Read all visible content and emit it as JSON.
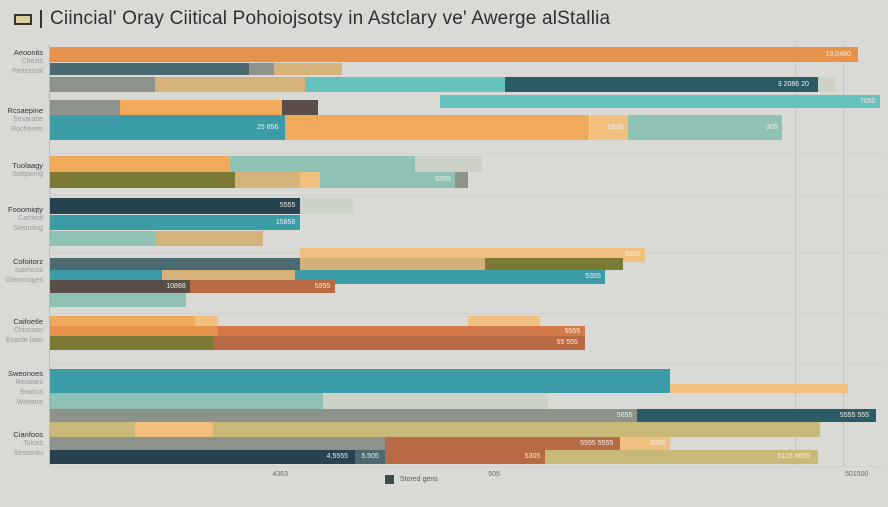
{
  "title": "Ciincial' Oray Ciitical Pohoiojsotsy in Astclary ve' Awerge alStallia",
  "title_icon": "window-icon",
  "chart_data": {
    "type": "bar",
    "orientation": "horizontal",
    "stacked": true,
    "xlim": [
      0,
      100
    ],
    "grid": true,
    "legend": {
      "placement": "bottom-center",
      "entries": [
        "Stored gens"
      ],
      "color": "#3d4a4d"
    },
    "x_ticks": [
      "4363",
      "505",
      "501500"
    ],
    "x_tick_values": [
      28,
      54,
      97
    ],
    "colors": {
      "orange": "#e7924a",
      "lightorange": "#efaa5c",
      "paleorange": "#f2c07e",
      "rust": "#d47a4a",
      "tan": "#d4b27a",
      "teal": "#3b9ba7",
      "lightteal": "#66c2bc",
      "mint": "#8fc2b4",
      "darkteal": "#2b5b66",
      "navy": "#27434f",
      "slate": "#4c6870",
      "gray": "#8d938a",
      "olive": "#7b7a35",
      "brown": "#5a4e48",
      "brownorange": "#b86a45",
      "pale": "#ccd2c6",
      "sand": "#c9b978"
    },
    "groups": [
      {
        "label": "Aeoonits",
        "sub": [
          "Chezis",
          "Pertectsal"
        ]
      },
      {
        "label": "Rcsaepine",
        "sub": [
          "Sexarabe",
          "Rocherets"
        ]
      },
      {
        "label": "Tuolaagy",
        "sub": [
          "Sottpvinig"
        ]
      },
      {
        "label": "Fooomiqty",
        "sub": [
          "Carriedt",
          "Sesturing"
        ]
      },
      {
        "label": "Cofoitorz",
        "sub": [
          "Isaehcns",
          "Glemmages"
        ]
      },
      {
        "label": "Caifoetle",
        "sub": [
          "Chiosasn",
          "Exartle laan"
        ]
      },
      {
        "label": "Sweonoes",
        "sub": [
          "Reciears",
          "Seatins",
          "Weeatre"
        ]
      },
      {
        "label": "Cianfoos",
        "sub": [
          "Tolces",
          "Sessentu"
        ]
      }
    ],
    "rows": [
      {
        "segments": [
          {
            "start": 0,
            "end": 97.3,
            "color": "orange",
            "label": "19,0480"
          }
        ]
      },
      {
        "segments": [
          {
            "start": 0,
            "end": 24,
            "color": "slate"
          },
          {
            "start": 24,
            "end": 27,
            "color": "gray"
          },
          {
            "start": 27,
            "end": 35.2,
            "color": "tan"
          }
        ]
      },
      {
        "segments": [
          {
            "start": 0,
            "end": 12.6,
            "color": "gray"
          },
          {
            "start": 12.6,
            "end": 30.7,
            "color": "tan"
          },
          {
            "start": 30.7,
            "end": 54.8,
            "color": "lightteal"
          },
          {
            "start": 54.8,
            "end": 92.5,
            "color": "darkteal",
            "label": "3 2086 20"
          },
          {
            "start": 92.5,
            "end": 94.6,
            "color": "pale"
          }
        ]
      },
      {
        "segments": [
          {
            "start": 47,
            "end": 100,
            "color": "lightteal",
            "label": "7050"
          }
        ]
      },
      {
        "segments": [
          {
            "start": 0,
            "end": 8.4,
            "color": "gray"
          },
          {
            "start": 8.4,
            "end": 28,
            "color": "lightorange"
          },
          {
            "start": 28,
            "end": 32.3,
            "color": "brown"
          }
        ]
      },
      {
        "segments": [
          {
            "start": 0,
            "end": 28.3,
            "color": "teal",
            "label": "25 856"
          },
          {
            "start": 28.3,
            "end": 65,
            "color": "lightorange"
          },
          {
            "start": 65,
            "end": 69.6,
            "color": "paleorange",
            "label": "5526"
          },
          {
            "start": 69.6,
            "end": 88.2,
            "color": "mint",
            "label": "305"
          }
        ]
      },
      {
        "segments": [
          {
            "start": 0,
            "end": 21.7,
            "color": "lightorange"
          },
          {
            "start": 21.7,
            "end": 44,
            "color": "mint"
          },
          {
            "start": 44,
            "end": 48.8,
            "color": "pale"
          },
          {
            "start": 48.8,
            "end": 52,
            "color": "pale"
          }
        ]
      },
      {
        "segments": [
          {
            "start": 0,
            "end": 22.3,
            "color": "olive"
          },
          {
            "start": 22.3,
            "end": 30.1,
            "color": "tan"
          },
          {
            "start": 30.1,
            "end": 32.5,
            "color": "paleorange"
          },
          {
            "start": 32.5,
            "end": 48.8,
            "color": "mint",
            "label": "5355"
          },
          {
            "start": 48.8,
            "end": 50.4,
            "color": "gray"
          }
        ]
      },
      {
        "segments": [
          {
            "start": 0,
            "end": 30.1,
            "color": "navy",
            "label": "5555"
          },
          {
            "start": 30.1,
            "end": 36.5,
            "color": "pale"
          }
        ]
      },
      {
        "segments": [
          {
            "start": 0,
            "end": 30.1,
            "color": "teal",
            "label": "15858"
          }
        ]
      },
      {
        "segments": [
          {
            "start": 0,
            "end": 12.6,
            "color": "mint"
          },
          {
            "start": 12.6,
            "end": 25.7,
            "color": "tan"
          }
        ]
      },
      {
        "segments": [
          {
            "start": 30.1,
            "end": 71.7,
            "color": "paleorange",
            "label": "5855"
          }
        ]
      },
      {
        "segments": [
          {
            "start": 0,
            "end": 30.1,
            "color": "slate"
          },
          {
            "start": 30.1,
            "end": 52.4,
            "color": "tan"
          },
          {
            "start": 52.4,
            "end": 69,
            "color": "olive"
          }
        ]
      },
      {
        "segments": [
          {
            "start": 0,
            "end": 13.5,
            "color": "teal"
          },
          {
            "start": 13.5,
            "end": 29.5,
            "color": "tan"
          },
          {
            "start": 29.5,
            "end": 66.9,
            "color": "teal",
            "label": "5355"
          }
        ]
      },
      {
        "segments": [
          {
            "start": 0,
            "end": 16.9,
            "color": "brown",
            "label": "10868"
          },
          {
            "start": 16.9,
            "end": 34.3,
            "color": "brownorange",
            "label": "5955"
          }
        ]
      },
      {
        "segments": [
          {
            "start": 0,
            "end": 16.4,
            "color": "mint"
          }
        ]
      },
      {
        "segments": [
          {
            "start": 0,
            "end": 17.5,
            "color": "lightorange"
          },
          {
            "start": 17.5,
            "end": 20.2,
            "color": "paleorange"
          },
          {
            "start": 50.4,
            "end": 59,
            "color": "paleorange"
          }
        ]
      },
      {
        "segments": [
          {
            "start": 0,
            "end": 20.2,
            "color": "orange"
          },
          {
            "start": 20.2,
            "end": 64.4,
            "color": "rust",
            "label": "5555"
          }
        ]
      },
      {
        "segments": [
          {
            "start": 0,
            "end": 19.6,
            "color": "olive"
          },
          {
            "start": 19.6,
            "end": 64.4,
            "color": "brownorange",
            "label": "55 555"
          }
        ]
      },
      {
        "segments": [
          {
            "start": 0,
            "end": 74.7,
            "color": "teal"
          }
        ]
      },
      {
        "segments": [
          {
            "start": 0,
            "end": 74.7,
            "color": "teal"
          },
          {
            "start": 74.7,
            "end": 96.1,
            "color": "paleorange"
          }
        ]
      },
      {
        "segments": [
          {
            "start": 0,
            "end": 32.9,
            "color": "mint"
          },
          {
            "start": 32.9,
            "end": 60,
            "color": "pale"
          }
        ]
      },
      {
        "segments": [
          {
            "start": 0,
            "end": 70.7,
            "color": "gray",
            "label": "5655"
          },
          {
            "start": 70.7,
            "end": 99.5,
            "color": "darkteal",
            "label": "5555 555"
          }
        ]
      },
      {
        "segments": [
          {
            "start": 0,
            "end": 10.2,
            "color": "sand"
          },
          {
            "start": 10.2,
            "end": 19.6,
            "color": "paleorange"
          },
          {
            "start": 19.6,
            "end": 92.8,
            "color": "sand"
          }
        ]
      },
      {
        "segments": [
          {
            "start": 0,
            "end": 40.4,
            "color": "gray"
          },
          {
            "start": 40.4,
            "end": 68.7,
            "color": "brownorange",
            "label": "5555 5555"
          },
          {
            "start": 68.7,
            "end": 74.7,
            "color": "paleorange",
            "label": "5055"
          }
        ]
      },
      {
        "segments": [
          {
            "start": 0,
            "end": 36.7,
            "color": "navy",
            "label": "4.5555"
          },
          {
            "start": 36.7,
            "end": 40.4,
            "color": "slate",
            "label": "5.505"
          },
          {
            "start": 40.4,
            "end": 59.6,
            "color": "brownorange",
            "label": "5305"
          },
          {
            "start": 59.6,
            "end": 92.5,
            "color": "sand",
            "label": "5115 5055"
          }
        ]
      }
    ]
  }
}
